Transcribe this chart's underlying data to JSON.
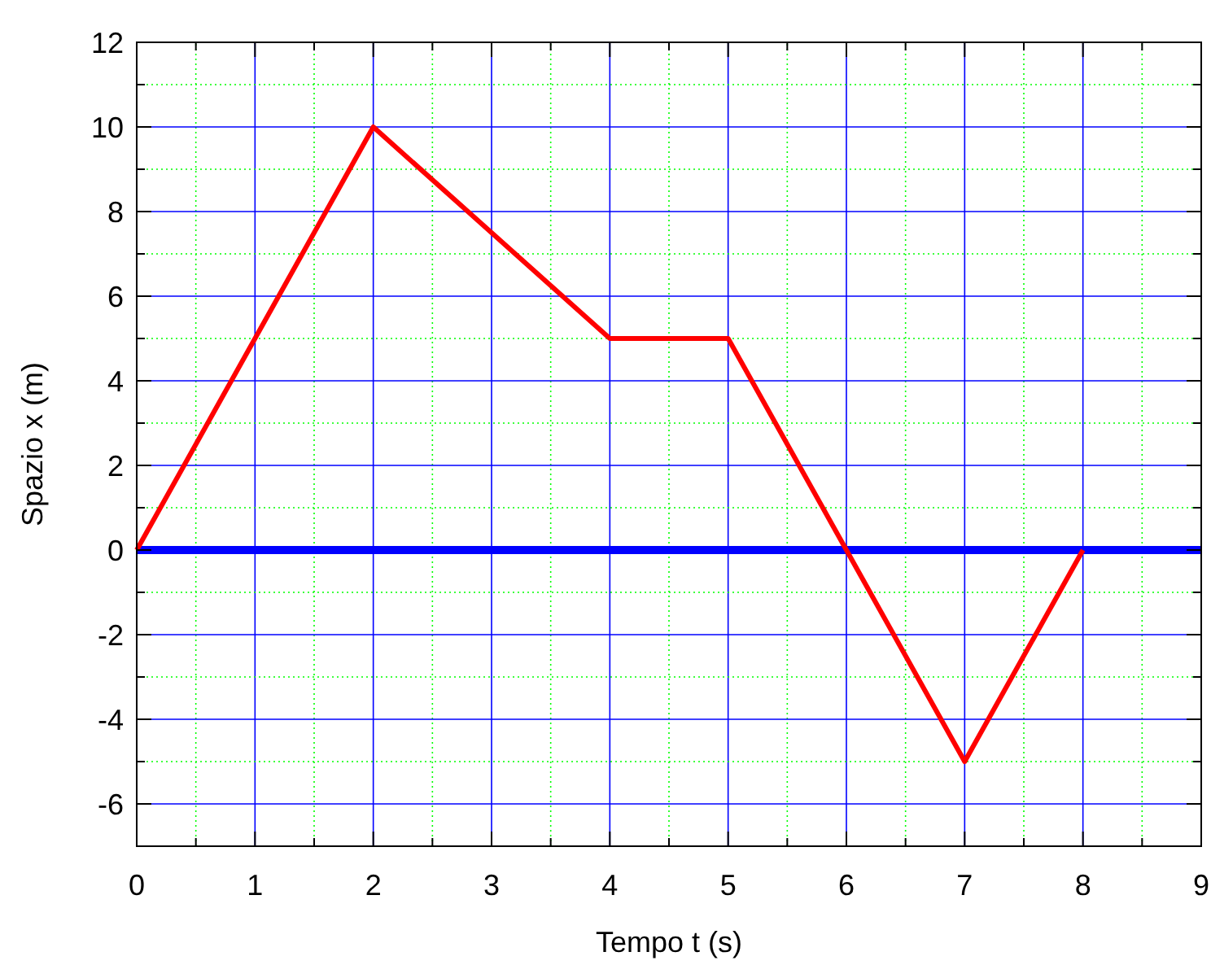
{
  "chart_data": {
    "type": "line",
    "xlabel": "Tempo t (s)",
    "ylabel": "Spazio x (m)",
    "x": [
      0,
      2,
      4,
      5,
      6,
      7,
      8
    ],
    "series": [
      {
        "color": "#ff0000",
        "values": [
          0,
          10,
          5,
          5,
          0,
          -5,
          0
        ]
      }
    ],
    "xlim": [
      0,
      9
    ],
    "ylim": [
      -7,
      12
    ],
    "xticks": [
      0,
      {
        "value": 0.5,
        "label": null
      },
      1,
      {
        "value": 1.5,
        "label": null
      },
      2,
      {
        "value": 2.5,
        "label": null
      },
      3,
      {
        "value": 3.5,
        "label": null
      },
      4,
      {
        "value": 4.5,
        "label": null
      },
      5,
      {
        "value": 5.5,
        "label": null
      },
      6,
      {
        "value": 6.5,
        "label": null
      },
      7,
      {
        "value": 7.5,
        "label": null
      },
      8,
      {
        "value": 8.5,
        "label": null
      },
      9
    ],
    "yticks": [
      -6,
      {
        "value": -5,
        "label": null
      },
      -4,
      {
        "value": -3,
        "label": null
      },
      -2,
      {
        "value": -1,
        "label": null
      },
      0,
      {
        "value": 1,
        "label": null
      },
      2,
      {
        "value": 3,
        "label": null
      },
      4,
      {
        "value": 5,
        "label": null
      },
      6,
      {
        "value": 7,
        "label": null
      },
      8,
      {
        "value": 9,
        "label": null
      },
      10,
      {
        "value": 11,
        "label": null
      },
      12
    ],
    "grid": true,
    "marker": "none",
    "line_style": "solid",
    "ref_lines": [
      {
        "axis": "y",
        "value": 0,
        "color": "#0000ff"
      }
    ]
  }
}
